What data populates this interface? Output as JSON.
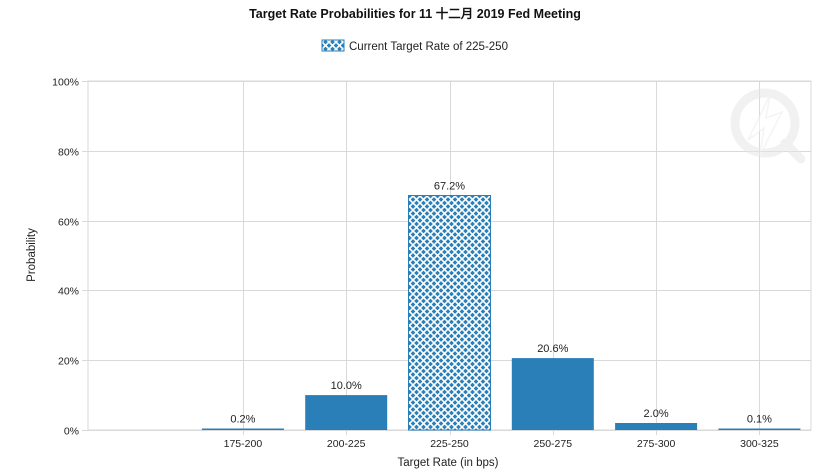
{
  "chart_data": {
    "type": "bar",
    "title": "Target Rate Probabilities for 11 十二月 2019  Fed Meeting",
    "legend": {
      "label": "Current Target Rate of 225-250",
      "placement": "top-center"
    },
    "categories": [
      "175-200",
      "200-225",
      "225-250",
      "250-275",
      "275-300",
      "300-325"
    ],
    "values": [
      0.2,
      10.0,
      67.2,
      20.6,
      2.0,
      0.1
    ],
    "data_labels": [
      "0.2%",
      "10.0%",
      "67.2%",
      "20.6%",
      "2.0%",
      "0.1%"
    ],
    "highlight_category": "225-250",
    "xlabel": "Target Rate (in bps)",
    "ylabel": "Probability",
    "ylim": [
      0,
      100
    ],
    "yticks": [
      0,
      20,
      40,
      60,
      80,
      100
    ],
    "ytick_labels": [
      "0%",
      "20%",
      "40%",
      "60%",
      "80%",
      "100%"
    ],
    "grid": true,
    "colors": {
      "bar": "#2a7fb8",
      "hatch_bg": "#ffffff",
      "grid": "#d9d9d9",
      "axis": "#999999"
    }
  }
}
